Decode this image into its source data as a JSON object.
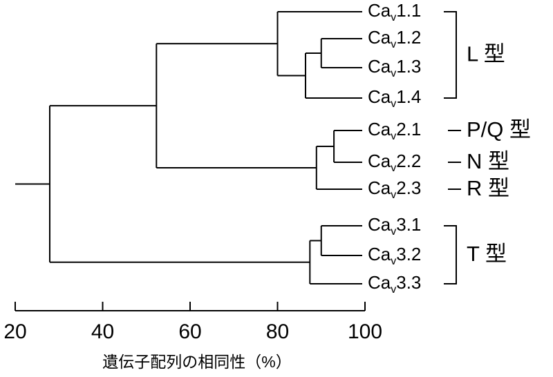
{
  "chart_data": {
    "type": "dendrogram",
    "xlabel": "遺伝子配列の相同性（%）",
    "xlim": [
      20,
      100
    ],
    "xticks": [
      20,
      40,
      60,
      80,
      100
    ],
    "leaves": [
      {
        "base": "Ca",
        "sub": "v",
        "num": "1.1"
      },
      {
        "base": "Ca",
        "sub": "v",
        "num": "1.2"
      },
      {
        "base": "Ca",
        "sub": "v",
        "num": "1.3"
      },
      {
        "base": "Ca",
        "sub": "v",
        "num": "1.4"
      },
      {
        "base": "Ca",
        "sub": "v",
        "num": "2.1"
      },
      {
        "base": "Ca",
        "sub": "v",
        "num": "2.2"
      },
      {
        "base": "Ca",
        "sub": "v",
        "num": "2.3"
      },
      {
        "base": "Ca",
        "sub": "v",
        "num": "3.1"
      },
      {
        "base": "Ca",
        "sub": "v",
        "num": "3.2"
      },
      {
        "base": "Ca",
        "sub": "v",
        "num": "3.3"
      }
    ],
    "nodes": [
      {
        "value": 90,
        "children": [
          {
            "leaf": 1
          },
          {
            "leaf": 2
          }
        ]
      },
      {
        "value": 86.4,
        "children": [
          {
            "node": 0
          },
          {
            "leaf": 3
          }
        ]
      },
      {
        "value": 80,
        "children": [
          {
            "leaf": 0
          },
          {
            "node": 1
          }
        ]
      },
      {
        "value": 92.9,
        "children": [
          {
            "leaf": 4
          },
          {
            "leaf": 5
          }
        ]
      },
      {
        "value": 88.9,
        "children": [
          {
            "node": 3
          },
          {
            "leaf": 6
          }
        ]
      },
      {
        "value": 52.3,
        "children": [
          {
            "node": 2
          },
          {
            "node": 4
          }
        ]
      },
      {
        "value": 90,
        "children": [
          {
            "leaf": 7
          },
          {
            "leaf": 8
          }
        ]
      },
      {
        "value": 87.4,
        "children": [
          {
            "node": 6
          },
          {
            "leaf": 9
          }
        ]
      },
      {
        "value": 27.9,
        "children": [
          {
            "node": 5
          },
          {
            "node": 7
          }
        ]
      }
    ],
    "groups": [
      {
        "label": "L 型",
        "leaves": [
          0,
          3
        ]
      },
      {
        "label": "P/Q 型",
        "leaves": [
          4,
          4
        ]
      },
      {
        "label": "N 型",
        "leaves": [
          5,
          5
        ]
      },
      {
        "label": "R 型",
        "leaves": [
          6,
          6
        ]
      },
      {
        "label": "T 型",
        "leaves": [
          7,
          9
        ]
      }
    ]
  }
}
